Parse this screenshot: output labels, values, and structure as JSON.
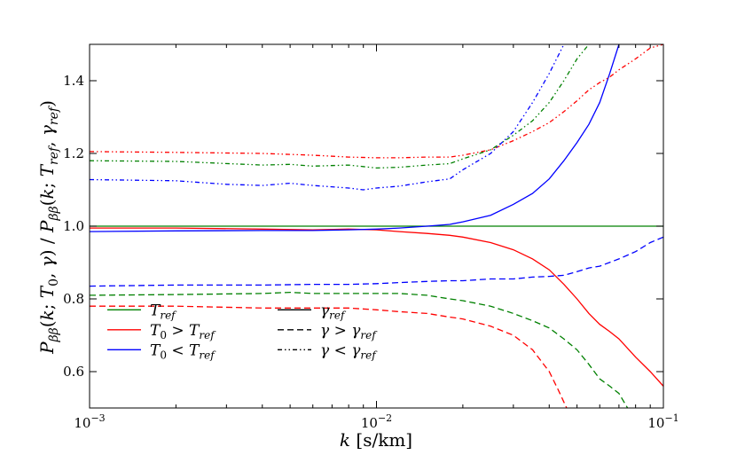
{
  "chart_data": {
    "type": "line",
    "xscale": "log",
    "xlim": [
      0.001,
      0.1
    ],
    "ylim": [
      0.5,
      1.5
    ],
    "xlabel": "k [s/km]",
    "ylabel": "Pββ(k; T0, γ) / Pββ(k; Tref, γref)",
    "x_ticks": [
      {
        "value": 0.001,
        "base": "10",
        "exp": "−3"
      },
      {
        "value": 0.01,
        "base": "10",
        "exp": "−2"
      },
      {
        "value": 0.1,
        "base": "10",
        "exp": "−1"
      }
    ],
    "y_ticks": [
      {
        "value": 0.6,
        "label": "0.6"
      },
      {
        "value": 0.8,
        "label": "0.8"
      },
      {
        "value": 1.0,
        "label": "1.0"
      },
      {
        "value": 1.2,
        "label": "1.2"
      },
      {
        "value": 1.4,
        "label": "1.4"
      }
    ],
    "colors": {
      "ref": "#008000",
      "high": "#ff0000",
      "low": "#0000ff",
      "key": "#000000"
    },
    "series": [
      {
        "name": "Tref reference",
        "color": "ref",
        "dash": "solid",
        "points": [
          [
            0.001,
            1.0
          ],
          [
            0.1,
            1.0
          ]
        ]
      },
      {
        "name": "T0 > Tref, gamma = ref",
        "color": "high",
        "dash": "solid",
        "points": [
          [
            0.001,
            0.995
          ],
          [
            0.002,
            0.995
          ],
          [
            0.004,
            0.992
          ],
          [
            0.006,
            0.99
          ],
          [
            0.008,
            0.992
          ],
          [
            0.01,
            0.99
          ],
          [
            0.012,
            0.985
          ],
          [
            0.015,
            0.98
          ],
          [
            0.018,
            0.975
          ],
          [
            0.02,
            0.97
          ],
          [
            0.025,
            0.955
          ],
          [
            0.03,
            0.935
          ],
          [
            0.035,
            0.91
          ],
          [
            0.04,
            0.88
          ],
          [
            0.045,
            0.84
          ],
          [
            0.05,
            0.8
          ],
          [
            0.055,
            0.76
          ],
          [
            0.06,
            0.73
          ],
          [
            0.065,
            0.71
          ],
          [
            0.07,
            0.69
          ],
          [
            0.08,
            0.64
          ],
          [
            0.09,
            0.6
          ],
          [
            0.1,
            0.56
          ]
        ]
      },
      {
        "name": "T0 < Tref, gamma = ref",
        "color": "low",
        "dash": "solid",
        "points": [
          [
            0.001,
            0.985
          ],
          [
            0.002,
            0.987
          ],
          [
            0.004,
            0.988
          ],
          [
            0.006,
            0.988
          ],
          [
            0.008,
            0.99
          ],
          [
            0.01,
            0.992
          ],
          [
            0.012,
            0.995
          ],
          [
            0.015,
            1.0
          ],
          [
            0.018,
            1.005
          ],
          [
            0.02,
            1.012
          ],
          [
            0.025,
            1.03
          ],
          [
            0.03,
            1.06
          ],
          [
            0.035,
            1.09
          ],
          [
            0.04,
            1.13
          ],
          [
            0.045,
            1.18
          ],
          [
            0.05,
            1.23
          ],
          [
            0.055,
            1.28
          ],
          [
            0.06,
            1.34
          ],
          [
            0.065,
            1.42
          ],
          [
            0.07,
            1.5
          ]
        ]
      },
      {
        "name": "T0 > Tref, gamma > ref",
        "color": "high",
        "dash": "dashed",
        "points": [
          [
            0.001,
            0.78
          ],
          [
            0.002,
            0.78
          ],
          [
            0.004,
            0.775
          ],
          [
            0.006,
            0.775
          ],
          [
            0.008,
            0.775
          ],
          [
            0.01,
            0.77
          ],
          [
            0.012,
            0.765
          ],
          [
            0.015,
            0.76
          ],
          [
            0.018,
            0.75
          ],
          [
            0.02,
            0.745
          ],
          [
            0.025,
            0.725
          ],
          [
            0.03,
            0.7
          ],
          [
            0.035,
            0.66
          ],
          [
            0.04,
            0.6
          ],
          [
            0.043,
            0.55
          ],
          [
            0.046,
            0.5
          ]
        ]
      },
      {
        "name": "Tref, gamma > ref",
        "color": "ref",
        "dash": "dashed",
        "points": [
          [
            0.001,
            0.81
          ],
          [
            0.002,
            0.812
          ],
          [
            0.004,
            0.815
          ],
          [
            0.005,
            0.818
          ],
          [
            0.006,
            0.815
          ],
          [
            0.008,
            0.815
          ],
          [
            0.01,
            0.815
          ],
          [
            0.012,
            0.815
          ],
          [
            0.015,
            0.81
          ],
          [
            0.018,
            0.8
          ],
          [
            0.02,
            0.795
          ],
          [
            0.025,
            0.78
          ],
          [
            0.03,
            0.76
          ],
          [
            0.035,
            0.74
          ],
          [
            0.04,
            0.72
          ],
          [
            0.045,
            0.69
          ],
          [
            0.05,
            0.66
          ],
          [
            0.055,
            0.62
          ],
          [
            0.06,
            0.58
          ],
          [
            0.065,
            0.56
          ],
          [
            0.07,
            0.54
          ],
          [
            0.075,
            0.5
          ]
        ]
      },
      {
        "name": "T0 < Tref, gamma > ref",
        "color": "low",
        "dash": "dashed",
        "points": [
          [
            0.001,
            0.835
          ],
          [
            0.002,
            0.838
          ],
          [
            0.004,
            0.838
          ],
          [
            0.006,
            0.84
          ],
          [
            0.008,
            0.84
          ],
          [
            0.01,
            0.842
          ],
          [
            0.012,
            0.845
          ],
          [
            0.015,
            0.848
          ],
          [
            0.018,
            0.85
          ],
          [
            0.02,
            0.85
          ],
          [
            0.025,
            0.855
          ],
          [
            0.03,
            0.855
          ],
          [
            0.035,
            0.86
          ],
          [
            0.04,
            0.862
          ],
          [
            0.045,
            0.865
          ],
          [
            0.05,
            0.875
          ],
          [
            0.055,
            0.885
          ],
          [
            0.06,
            0.89
          ],
          [
            0.07,
            0.91
          ],
          [
            0.08,
            0.93
          ],
          [
            0.09,
            0.955
          ],
          [
            0.1,
            0.97
          ]
        ]
      },
      {
        "name": "T0 > Tref, gamma < ref",
        "color": "high",
        "dash": "dashdot",
        "points": [
          [
            0.001,
            1.205
          ],
          [
            0.002,
            1.203
          ],
          [
            0.004,
            1.2
          ],
          [
            0.006,
            1.195
          ],
          [
            0.008,
            1.19
          ],
          [
            0.01,
            1.188
          ],
          [
            0.012,
            1.188
          ],
          [
            0.015,
            1.19
          ],
          [
            0.018,
            1.19
          ],
          [
            0.02,
            1.195
          ],
          [
            0.025,
            1.21
          ],
          [
            0.03,
            1.235
          ],
          [
            0.035,
            1.26
          ],
          [
            0.04,
            1.285
          ],
          [
            0.045,
            1.315
          ],
          [
            0.05,
            1.345
          ],
          [
            0.055,
            1.375
          ],
          [
            0.06,
            1.395
          ],
          [
            0.065,
            1.41
          ],
          [
            0.07,
            1.43
          ],
          [
            0.08,
            1.46
          ],
          [
            0.09,
            1.49
          ],
          [
            0.1,
            1.5
          ]
        ]
      },
      {
        "name": "Tref, gamma < ref",
        "color": "ref",
        "dash": "dashdot",
        "points": [
          [
            0.001,
            1.18
          ],
          [
            0.002,
            1.178
          ],
          [
            0.004,
            1.168
          ],
          [
            0.005,
            1.17
          ],
          [
            0.006,
            1.165
          ],
          [
            0.008,
            1.168
          ],
          [
            0.01,
            1.16
          ],
          [
            0.012,
            1.162
          ],
          [
            0.015,
            1.168
          ],
          [
            0.018,
            1.172
          ],
          [
            0.02,
            1.185
          ],
          [
            0.025,
            1.21
          ],
          [
            0.03,
            1.25
          ],
          [
            0.035,
            1.29
          ],
          [
            0.04,
            1.34
          ],
          [
            0.045,
            1.4
          ],
          [
            0.05,
            1.46
          ],
          [
            0.055,
            1.5
          ]
        ]
      },
      {
        "name": "T0 < Tref, gamma < ref",
        "color": "low",
        "dash": "dashdot",
        "points": [
          [
            0.001,
            1.128
          ],
          [
            0.002,
            1.125
          ],
          [
            0.003,
            1.115
          ],
          [
            0.004,
            1.112
          ],
          [
            0.005,
            1.118
          ],
          [
            0.006,
            1.112
          ],
          [
            0.008,
            1.105
          ],
          [
            0.009,
            1.1
          ],
          [
            0.01,
            1.105
          ],
          [
            0.012,
            1.11
          ],
          [
            0.015,
            1.122
          ],
          [
            0.018,
            1.13
          ],
          [
            0.02,
            1.155
          ],
          [
            0.025,
            1.2
          ],
          [
            0.03,
            1.26
          ],
          [
            0.035,
            1.34
          ],
          [
            0.04,
            1.42
          ],
          [
            0.045,
            1.5
          ]
        ]
      }
    ],
    "legend": {
      "placement": "lower-left",
      "entries": [
        {
          "label": "Tref",
          "color": "ref",
          "dash": "solid"
        },
        {
          "label": "T0 > Tref",
          "color": "high",
          "dash": "solid"
        },
        {
          "label": "T0 < Tref",
          "color": "low",
          "dash": "solid"
        },
        {
          "label": "γref",
          "color": "key",
          "dash": "solid"
        },
        {
          "label": "γ > γref",
          "color": "key",
          "dash": "dashed"
        },
        {
          "label": "γ < γref",
          "color": "key",
          "dash": "dashdot"
        }
      ]
    }
  }
}
